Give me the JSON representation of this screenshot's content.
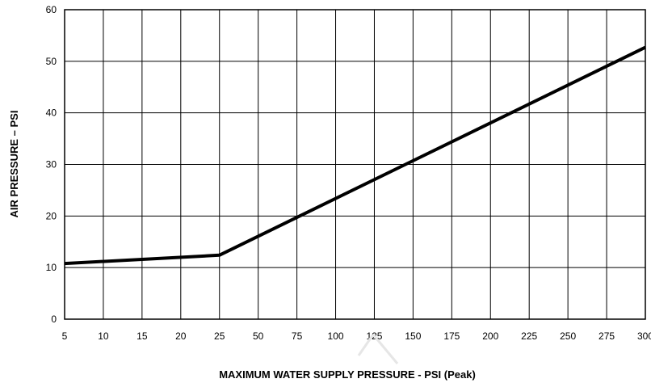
{
  "chart_data": {
    "type": "line",
    "xlabel": "MAXIMUM WATER SUPPLY PRESSURE - PSI (Peak)",
    "ylabel": "AIR PRESSURE – PSI",
    "x_tick_labels": [
      "5",
      "10",
      "15",
      "20",
      "25",
      "50",
      "75",
      "100",
      "125",
      "150",
      "175",
      "200",
      "225",
      "250",
      "275",
      "300"
    ],
    "y_ticks": [
      0,
      10,
      20,
      30,
      40,
      50,
      60
    ],
    "ylim": [
      0,
      60
    ],
    "grid": true,
    "x_scale_note": "non-uniform: 5 to 25 in steps of 5, then 25 to 300 in steps of 25; tick labels equally spaced",
    "series": [
      {
        "x": [
          5,
          25,
          300
        ],
        "y": [
          10.8,
          12.4,
          52.7
        ]
      }
    ],
    "line_color": "#000000"
  }
}
